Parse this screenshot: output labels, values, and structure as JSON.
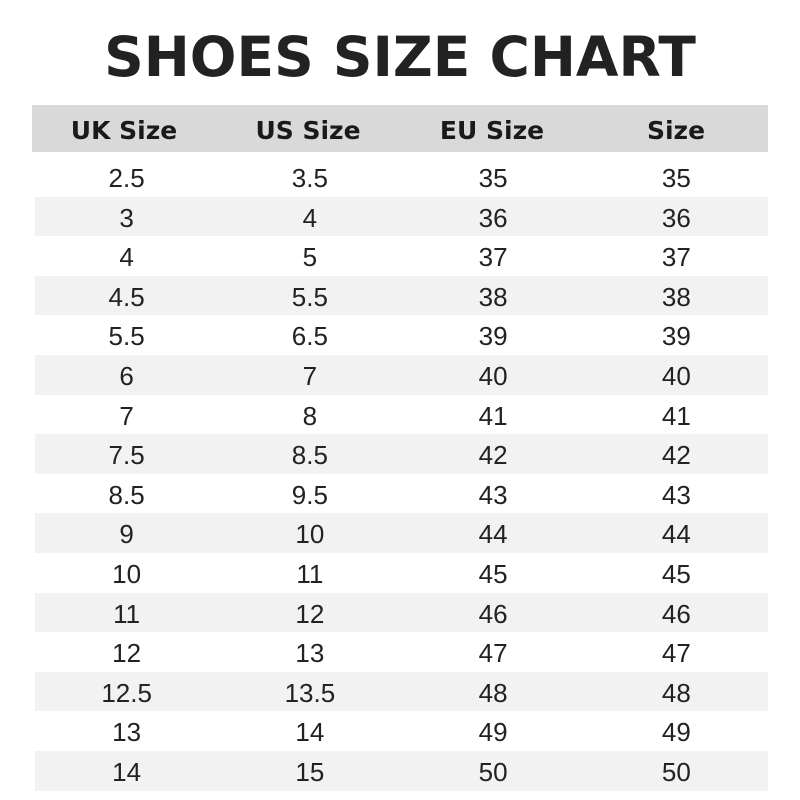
{
  "title": "SHOES SIZE CHART",
  "columns": [
    "UK Size",
    "US Size",
    "EU Size",
    "Size"
  ],
  "rows": [
    [
      "2.5",
      "3.5",
      "35",
      "35"
    ],
    [
      "3",
      "4",
      "36",
      "36"
    ],
    [
      "4",
      "5",
      "37",
      "37"
    ],
    [
      "4.5",
      "5.5",
      "38",
      "38"
    ],
    [
      "5.5",
      "6.5",
      "39",
      "39"
    ],
    [
      "6",
      "7",
      "40",
      "40"
    ],
    [
      "7",
      "8",
      "41",
      "41"
    ],
    [
      "7.5",
      "8.5",
      "42",
      "42"
    ],
    [
      "8.5",
      "9.5",
      "43",
      "43"
    ],
    [
      "9",
      "10",
      "44",
      "44"
    ],
    [
      "10",
      "11",
      "45",
      "45"
    ],
    [
      "11",
      "12",
      "46",
      "46"
    ],
    [
      "12",
      "13",
      "47",
      "47"
    ],
    [
      "12.5",
      "13.5",
      "48",
      "48"
    ],
    [
      "13",
      "14",
      "49",
      "49"
    ],
    [
      "14",
      "15",
      "50",
      "50"
    ]
  ],
  "colors": {
    "header_bg": "#d9d9d9",
    "stripe_bg": "#f2f2f2",
    "text": "#222222"
  }
}
